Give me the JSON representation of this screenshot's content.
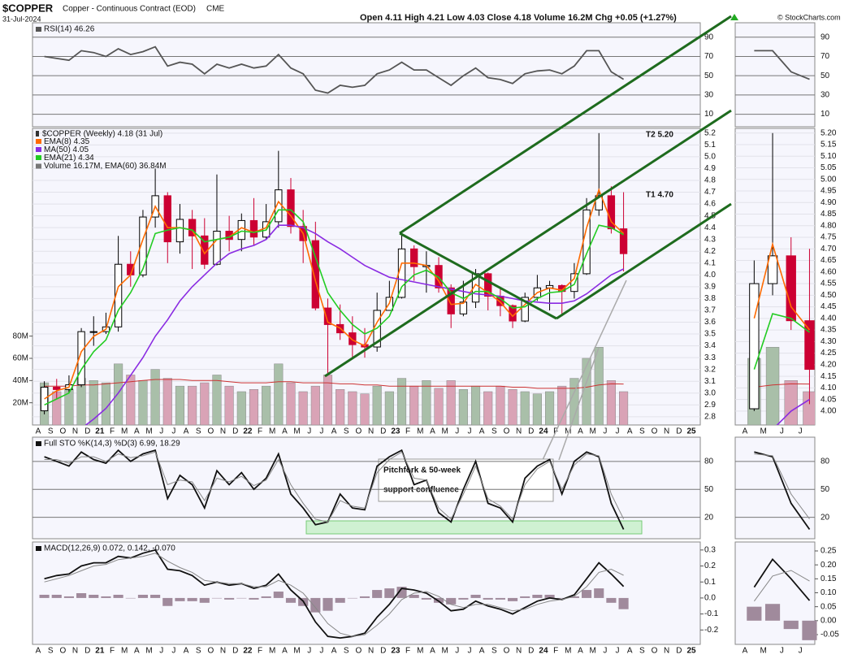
{
  "header": {
    "symbol": "$COPPER",
    "name": "Copper - Continuous Contract (EOD)",
    "exchange": "CME",
    "date": "31-Jul-2024",
    "quote": "Open 4.11  High 4.21  Low 4.03  Close 4.18  Volume 16.2M  Chg +0.05 (+1.27%)",
    "copyright": "© StockCharts.com"
  },
  "chart_data": [
    {
      "type": "line",
      "title": "RSI(14) 46.26",
      "ylim": [
        -3,
        105
      ],
      "yticks": [
        10,
        30,
        50,
        70,
        90
      ],
      "grid": true,
      "series": [
        {
          "color": "#555555",
          "values": [
            70,
            68,
            66,
            76,
            74,
            70,
            78,
            72,
            75,
            80,
            60,
            64,
            62,
            52,
            62,
            58,
            62,
            58,
            60,
            72,
            58,
            52,
            35,
            32,
            40,
            38,
            40,
            52,
            56,
            64,
            56,
            56,
            48,
            40,
            50,
            58,
            48,
            46,
            42,
            52,
            55,
            56,
            52,
            60,
            76,
            76,
            54,
            46.26,
            null,
            null,
            null,
            null,
            null,
            null
          ]
        }
      ]
    },
    {
      "type": "candlestick",
      "title": "$COPPER (Weekly) 4.18 (31 Jul)",
      "categories": [
        "A",
        "S",
        "O",
        "N",
        "D",
        "21",
        "F",
        "M",
        "A",
        "M",
        "J",
        "J",
        "A",
        "S",
        "O",
        "N",
        "D",
        "22",
        "F",
        "M",
        "A",
        "M",
        "J",
        "J",
        "A",
        "S",
        "O",
        "N",
        "D",
        "23",
        "F",
        "M",
        "A",
        "M",
        "J",
        "J",
        "A",
        "S",
        "O",
        "N",
        "D",
        "24",
        "F",
        "M",
        "A",
        "M",
        "J",
        "J",
        "A",
        "S",
        "O",
        "N",
        "D",
        "25"
      ],
      "open": [
        2.85,
        3.05,
        3.03,
        3.07,
        3.52,
        3.52,
        3.56,
        4.09,
        4.0,
        4.49,
        4.67,
        4.28,
        4.47,
        4.33,
        4.09,
        4.37,
        4.3,
        4.46,
        4.32,
        4.45,
        4.72,
        4.41,
        4.29,
        3.72,
        3.58,
        3.51,
        3.41,
        3.39,
        3.7,
        3.81,
        4.22,
        4.07,
        4.08,
        3.89,
        3.67,
        3.77,
        4.01,
        3.82,
        3.74,
        3.61,
        3.81,
        3.89,
        3.91,
        3.86,
        4.01,
        4.55,
        4.67,
        4.39,
        null,
        null,
        null,
        null,
        null,
        null
      ],
      "high": [
        3.1,
        3.12,
        3.15,
        3.55,
        3.65,
        3.68,
        4.33,
        4.2,
        4.55,
        4.9,
        4.7,
        4.6,
        4.55,
        4.48,
        4.85,
        4.5,
        4.52,
        4.65,
        4.6,
        5.05,
        4.82,
        4.55,
        4.45,
        3.8,
        3.75,
        3.65,
        3.55,
        3.85,
        3.95,
        4.35,
        4.25,
        4.2,
        4.15,
        3.92,
        3.95,
        4.05,
        4.02,
        3.9,
        3.75,
        3.85,
        4.0,
        3.95,
        3.92,
        4.1,
        4.65,
        5.2,
        4.75,
        4.7,
        null,
        null,
        null,
        null,
        null,
        null
      ],
      "low": [
        2.82,
        2.95,
        3.0,
        3.05,
        3.4,
        3.5,
        3.52,
        3.9,
        3.98,
        4.4,
        4.1,
        4.18,
        4.05,
        4.05,
        4.08,
        4.2,
        4.2,
        4.25,
        4.3,
        4.4,
        4.35,
        4.1,
        3.7,
        3.15,
        3.45,
        3.3,
        3.3,
        3.35,
        3.7,
        3.8,
        3.95,
        3.85,
        3.85,
        3.55,
        3.65,
        3.72,
        3.7,
        3.65,
        3.55,
        3.6,
        3.78,
        3.7,
        3.65,
        3.8,
        4.0,
        4.5,
        4.35,
        4.03,
        null,
        null,
        null,
        null,
        null,
        null
      ],
      "close": [
        3.05,
        3.03,
        3.07,
        3.52,
        3.52,
        3.56,
        4.09,
        4.0,
        4.49,
        4.67,
        4.28,
        4.47,
        4.33,
        4.09,
        4.37,
        4.3,
        4.46,
        4.32,
        4.45,
        4.72,
        4.41,
        4.29,
        3.72,
        3.58,
        3.51,
        3.41,
        3.39,
        3.7,
        3.81,
        4.22,
        4.07,
        4.08,
        3.89,
        3.67,
        3.77,
        4.01,
        3.82,
        3.74,
        3.61,
        3.81,
        3.89,
        3.91,
        3.86,
        4.01,
        4.55,
        4.67,
        4.39,
        4.18,
        null,
        null,
        null,
        null,
        null,
        null
      ],
      "up_color": "#ffffff",
      "down_color": "#cc0033",
      "series": [
        {
          "name": "EMA(8) 4.35",
          "color": "#ff6a00",
          "values": [
            2.95,
            3.02,
            3.05,
            3.35,
            3.48,
            3.54,
            3.9,
            4.0,
            4.3,
            4.58,
            4.4,
            4.4,
            4.38,
            4.18,
            4.3,
            4.32,
            4.4,
            4.36,
            4.4,
            4.62,
            4.5,
            4.35,
            3.95,
            3.6,
            3.55,
            3.45,
            3.4,
            3.6,
            3.76,
            4.1,
            4.1,
            4.08,
            3.95,
            3.75,
            3.76,
            3.92,
            3.85,
            3.77,
            3.65,
            3.75,
            3.85,
            3.89,
            3.87,
            3.97,
            4.4,
            4.72,
            4.45,
            4.35,
            null,
            null,
            null,
            null,
            null,
            null
          ]
        },
        {
          "name": "MA(50) 4.05",
          "color": "#8a2be2",
          "values": [
            2.5,
            2.55,
            2.62,
            2.7,
            2.78,
            2.87,
            3.0,
            3.15,
            3.3,
            3.48,
            3.62,
            3.78,
            3.9,
            4.0,
            4.1,
            4.18,
            4.22,
            4.25,
            4.3,
            4.42,
            4.42,
            4.4,
            4.35,
            4.28,
            4.22,
            4.15,
            4.08,
            4.03,
            3.98,
            3.96,
            3.94,
            3.92,
            3.9,
            3.88,
            3.86,
            3.84,
            3.83,
            3.82,
            3.8,
            3.78,
            3.77,
            3.76,
            3.76,
            3.78,
            3.84,
            3.92,
            4.0,
            4.05,
            null,
            null,
            null,
            null,
            null,
            null
          ]
        },
        {
          "name": "EMA(21) 4.34",
          "color": "#22cc22",
          "values": [
            2.9,
            2.95,
            3.0,
            3.2,
            3.35,
            3.45,
            3.7,
            3.85,
            4.05,
            4.35,
            4.38,
            4.4,
            4.38,
            4.28,
            4.3,
            4.32,
            4.37,
            4.36,
            4.38,
            4.55,
            4.55,
            4.45,
            4.15,
            3.85,
            3.7,
            3.58,
            3.5,
            3.55,
            3.65,
            3.9,
            4.0,
            4.04,
            3.98,
            3.85,
            3.8,
            3.86,
            3.86,
            3.8,
            3.72,
            3.73,
            3.8,
            3.85,
            3.86,
            3.92,
            4.18,
            4.42,
            4.4,
            4.34,
            null,
            null,
            null,
            null,
            null,
            null
          ]
        }
      ],
      "volume": {
        "name": "Volume 16.17M, EMA(60) 36.84M",
        "color": "#a9bfa9",
        "down_color": "#d9a3b6",
        "ema_color": "#cc3333",
        "values": [
          38,
          30,
          32,
          42,
          40,
          38,
          55,
          45,
          40,
          50,
          42,
          35,
          35,
          38,
          45,
          35,
          30,
          32,
          35,
          55,
          38,
          30,
          35,
          45,
          32,
          30,
          28,
          35,
          30,
          42,
          35,
          40,
          33,
          40,
          32,
          35,
          30,
          35,
          32,
          30,
          28,
          30,
          35,
          42,
          60,
          70,
          40,
          30,
          null,
          null,
          null,
          null,
          null,
          null
        ],
        "ema": [
          35,
          35,
          35,
          36,
          36,
          37,
          38,
          39,
          40,
          41,
          41,
          41,
          40,
          40,
          40,
          39,
          38,
          38,
          38,
          39,
          39,
          38,
          38,
          38,
          37,
          37,
          36,
          36,
          35,
          35,
          35,
          35,
          35,
          35,
          35,
          35,
          35,
          35,
          34,
          34,
          33,
          33,
          33,
          33,
          34,
          36,
          37,
          36.84,
          null,
          null,
          null,
          null,
          null,
          null
        ]
      },
      "ylim": [
        2.73,
        5.24
      ],
      "yticks": [
        2.8,
        2.9,
        {
          "value": 3,
          "label": "3.0"
        },
        3.1,
        3.2,
        3.3,
        3.4,
        3.5,
        3.6,
        3.7,
        3.8,
        3.9,
        {
          "value": 4,
          "label": "4.0"
        },
        4.1,
        4.2,
        4.3,
        4.4,
        4.5,
        4.6,
        4.7,
        4.8,
        4.9,
        {
          "value": 5,
          "label": "5.0"
        },
        5.1,
        5.2
      ],
      "y2lim": [
        0,
        267
      ],
      "y2ticks": [
        {
          "value": 20,
          "label": "20M"
        },
        {
          "value": 40,
          "label": "40M"
        },
        {
          "value": 60,
          "label": "60M"
        },
        {
          "value": 80,
          "label": "80M"
        }
      ],
      "grid": true,
      "annotations": [
        "T2 5.20",
        "T1 4.70"
      ],
      "callout": [
        "Pitchfork & 50-week",
        "support confluence"
      ],
      "inset": {
        "ylim": [
          3.94,
          5.22
        ],
        "xtick_labels": [
          "A",
          "M",
          "J",
          "J"
        ],
        "yticks": [
          {
            "value": 4,
            "label": "4.00"
          },
          4.05,
          {
            "value": 4.1,
            "label": "4.10"
          },
          4.15,
          {
            "value": 4.2,
            "label": "4.20"
          },
          4.25,
          {
            "value": 4.3,
            "label": "4.30"
          },
          4.35,
          {
            "value": 4.4,
            "label": "4.40"
          },
          4.45,
          {
            "value": 4.5,
            "label": "4.50"
          },
          4.55,
          {
            "value": 4.6,
            "label": "4.60"
          },
          4.65,
          {
            "value": 4.7,
            "label": "4.70"
          },
          4.75,
          {
            "value": 4.8,
            "label": "4.80"
          },
          4.85,
          {
            "value": 4.9,
            "label": "4.90"
          },
          4.95,
          {
            "value": 5,
            "label": "5.00"
          },
          5.05,
          {
            "value": 5.1,
            "label": "5.10"
          },
          5.15,
          {
            "value": 5.2,
            "label": "5.20"
          }
        ]
      }
    },
    {
      "type": "line",
      "title": "Full STO %K(14,3) %D(3) 6.99, 18.29",
      "ylim": [
        -3,
        106
      ],
      "yticks": [
        20,
        50,
        80
      ],
      "grid": true,
      "series": [
        {
          "color": "#111111",
          "values": [
            85,
            80,
            75,
            90,
            82,
            78,
            92,
            80,
            88,
            92,
            40,
            65,
            55,
            30,
            70,
            55,
            68,
            50,
            62,
            88,
            45,
            30,
            12,
            15,
            45,
            30,
            28,
            75,
            85,
            92,
            55,
            60,
            25,
            15,
            50,
            80,
            35,
            30,
            15,
            62,
            75,
            82,
            45,
            80,
            90,
            85,
            35,
            6.99,
            null,
            null,
            null,
            null,
            null,
            null
          ]
        },
        {
          "color": "#888888",
          "values": [
            82,
            82,
            78,
            85,
            85,
            80,
            88,
            84,
            86,
            90,
            55,
            60,
            58,
            38,
            62,
            58,
            64,
            54,
            60,
            82,
            55,
            35,
            18,
            15,
            38,
            32,
            30,
            68,
            82,
            90,
            62,
            60,
            30,
            18,
            45,
            75,
            40,
            32,
            18,
            55,
            72,
            80,
            50,
            76,
            88,
            86,
            45,
            18.29,
            null,
            null,
            null,
            null,
            null,
            null
          ]
        }
      ]
    },
    {
      "type": "line",
      "title": "MACD(12,26,9) 0.072, 0.142, -0.070",
      "ylim": [
        -0.29,
        0.35
      ],
      "yticks": [
        0.3,
        0.2,
        0.1,
        {
          "value": 0,
          "label": "0.0"
        },
        -0.1,
        -0.2
      ],
      "grid": false,
      "categories": [
        "A",
        "S",
        "O",
        "N",
        "D",
        "21",
        "F",
        "M",
        "A",
        "M",
        "J",
        "J",
        "A",
        "S",
        "O",
        "N",
        "D",
        "22",
        "F",
        "M",
        "A",
        "M",
        "J",
        "J",
        "A",
        "S",
        "O",
        "N",
        "D",
        "23",
        "F",
        "M",
        "A",
        "M",
        "J",
        "J",
        "A",
        "S",
        "O",
        "N",
        "D",
        "24",
        "F",
        "M",
        "A",
        "M",
        "J",
        "J",
        "A",
        "S",
        "O",
        "N",
        "D",
        "25"
      ],
      "histogram": {
        "color": "#a08a9c",
        "values": [
          0.02,
          0.02,
          0.01,
          0.03,
          0.02,
          0.01,
          0.02,
          0,
          0.02,
          0.02,
          -0.05,
          -0.02,
          -0.02,
          -0.03,
          0,
          -0.01,
          0,
          -0.01,
          0.01,
          0.04,
          -0.03,
          -0.05,
          -0.09,
          -0.08,
          -0.03,
          0,
          0.01,
          0.05,
          0.06,
          0.07,
          0.02,
          -0.01,
          -0.03,
          -0.04,
          -0.01,
          0.02,
          -0.01,
          -0.01,
          -0.02,
          0.01,
          0.02,
          0.02,
          0,
          0.01,
          0.05,
          0.06,
          -0.03,
          -0.07,
          null,
          null,
          null,
          null,
          null,
          null
        ]
      },
      "series": [
        {
          "color": "#111111",
          "values": [
            0.12,
            0.14,
            0.15,
            0.2,
            0.22,
            0.22,
            0.26,
            0.25,
            0.28,
            0.3,
            0.18,
            0.17,
            0.14,
            0.08,
            0.1,
            0.08,
            0.09,
            0.06,
            0.08,
            0.15,
            0.05,
            -0.02,
            -0.15,
            -0.24,
            -0.25,
            -0.24,
            -0.22,
            -0.12,
            -0.04,
            0.06,
            0.05,
            0.03,
            -0.02,
            -0.08,
            -0.07,
            -0.02,
            -0.05,
            -0.07,
            -0.1,
            -0.06,
            -0.02,
            0,
            -0.01,
            0.02,
            0.12,
            0.22,
            0.15,
            0.072,
            null,
            null,
            null,
            null,
            null,
            null
          ]
        },
        {
          "color": "#888888",
          "values": [
            0.1,
            0.12,
            0.14,
            0.17,
            0.2,
            0.21,
            0.24,
            0.25,
            0.26,
            0.28,
            0.23,
            0.19,
            0.16,
            0.11,
            0.1,
            0.09,
            0.09,
            0.07,
            0.07,
            0.11,
            0.08,
            0.03,
            -0.06,
            -0.16,
            -0.22,
            -0.24,
            -0.23,
            -0.17,
            -0.1,
            -0.01,
            0.03,
            0.04,
            0.01,
            -0.04,
            -0.06,
            -0.04,
            -0.04,
            -0.06,
            -0.08,
            -0.07,
            -0.04,
            -0.02,
            -0.01,
            0.01,
            0.07,
            0.16,
            0.18,
            0.142,
            null,
            null,
            null,
            null,
            null,
            null
          ]
        }
      ],
      "inset": {
        "ylim": [
          -0.085,
          0.282
        ],
        "xtick_labels": [
          "A",
          "M",
          "J",
          "J"
        ],
        "yticks": [
          0.25,
          {
            "value": 0.2,
            "label": "0.20"
          },
          0.15,
          {
            "value": 0.1,
            "label": "0.10"
          },
          0.05,
          {
            "value": 0,
            "label": "0.00"
          },
          -0.05
        ]
      }
    }
  ]
}
